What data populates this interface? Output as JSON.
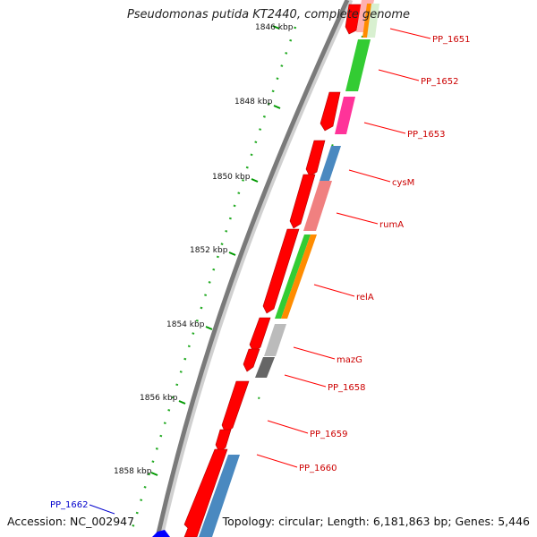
{
  "title": "Pseudomonas putida KT2440, complete genome",
  "accession": "Accession: NC_002947",
  "summary": "Topology: circular; Length: 6,181,863 bp; Genes: 5,446",
  "ticks": [
    {
      "label": "1846 kbp"
    },
    {
      "label": "1848 kbp"
    },
    {
      "label": "1850 kbp"
    },
    {
      "label": "1852 kbp"
    },
    {
      "label": "1854 kbp"
    },
    {
      "label": "1856 kbp"
    },
    {
      "label": "1858 kbp"
    }
  ],
  "features": [
    {
      "label": "PP_1651",
      "color": "#cc0000"
    },
    {
      "label": "PP_1652",
      "color": "#cc0000"
    },
    {
      "label": "PP_1653",
      "color": "#cc0000"
    },
    {
      "label": "cysM",
      "color": "#cc0000"
    },
    {
      "label": "rumA",
      "color": "#cc0000"
    },
    {
      "label": "relA",
      "color": "#cc0000"
    },
    {
      "label": "mazG",
      "color": "#cc0000"
    },
    {
      "label": "PP_1658",
      "color": "#cc0000"
    },
    {
      "label": "PP_1659",
      "color": "#cc0000"
    },
    {
      "label": "PP_1660",
      "color": "#cc0000"
    },
    {
      "label": "PP_1662",
      "color": "#0000cc"
    }
  ],
  "colors": {
    "gene_forward": "#ff0000",
    "backbone": "#808080",
    "tick": "#009900",
    "label_forward": "#cc0000",
    "label_reverse": "#0000cc"
  }
}
